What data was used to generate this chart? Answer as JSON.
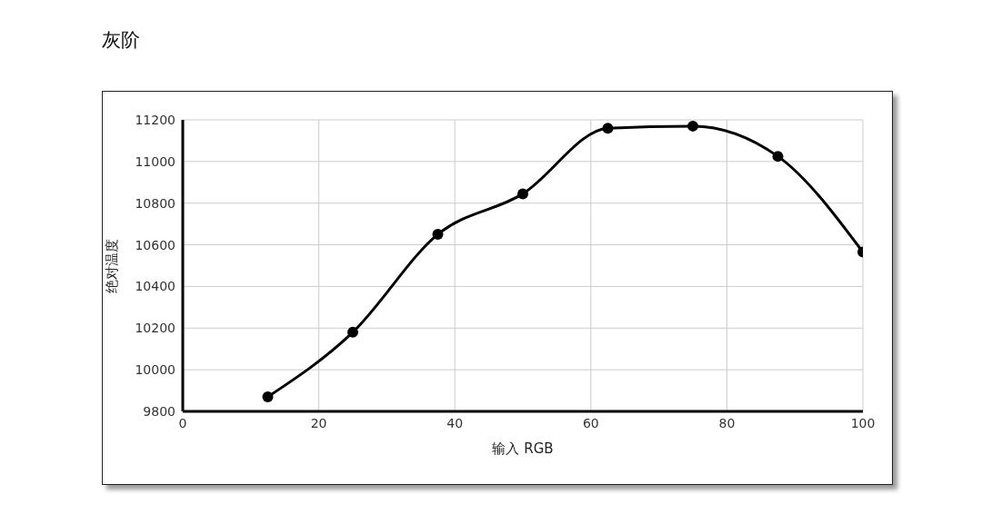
{
  "chart_data": {
    "type": "line",
    "title": "灰阶",
    "xlabel": "输入 RGB",
    "ylabel": "绝对温度",
    "x": [
      12.5,
      25,
      37.5,
      50,
      62.5,
      75,
      87.5,
      100
    ],
    "series": [
      {
        "color": "#000000",
        "values": [
          9870,
          10180,
          10650,
          10845,
          11160,
          11170,
          11025,
          10565
        ]
      }
    ],
    "xlim": [
      0,
      100
    ],
    "xticks": [
      0,
      20,
      40,
      60,
      80,
      100
    ],
    "ylim": [
      9800,
      11200
    ],
    "yticks": [
      9800,
      10000,
      10200,
      10400,
      10600,
      10800,
      11000,
      11200
    ],
    "grid": true,
    "marker": "circle",
    "line_style": "solid"
  }
}
